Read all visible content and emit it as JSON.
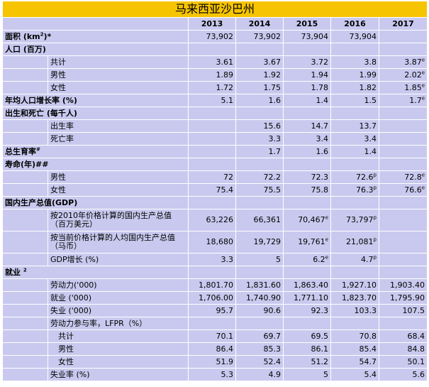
{
  "title": "马来西亚沙巴州",
  "years": [
    "2013",
    "2014",
    "2015",
    "2016",
    "2017"
  ],
  "rows": [
    {
      "type": "sec",
      "label": "面积 (km<sup>2</sup>)*",
      "values": [
        "73,902",
        "73,902",
        "73,904",
        "73,904",
        ""
      ]
    },
    {
      "type": "sec",
      "label": "人口 (百万)",
      "values": [
        "",
        "",
        "",
        "",
        ""
      ]
    },
    {
      "type": "sub",
      "label": "共计",
      "values": [
        "3.61",
        "3.67",
        "3.72",
        "3.8",
        "3.87<sup>e</sup>"
      ]
    },
    {
      "type": "sub",
      "label": "男性",
      "values": [
        "1.89",
        "1.92",
        "1.94",
        "1.99",
        "2.02<sup>e</sup>"
      ]
    },
    {
      "type": "sub",
      "label": "女性",
      "values": [
        "1.72",
        "1.75",
        "1.78",
        "1.82",
        "1.85<sup>e</sup>"
      ]
    },
    {
      "type": "sec",
      "label": "年均人口增长率 (%)",
      "values": [
        "5.1",
        "1.6",
        "1.4",
        "1.5",
        "1.7<sup>e</sup>"
      ]
    },
    {
      "type": "sec",
      "label": "出生和死亡 (每千人)",
      "values": [
        "",
        "",
        "",
        "",
        ""
      ]
    },
    {
      "type": "sub",
      "label": "出生率",
      "values": [
        "",
        "15.6",
        "14.7",
        "13.7",
        ""
      ]
    },
    {
      "type": "sub",
      "label": "死亡率",
      "values": [
        "",
        "3.3",
        "3.4",
        "3.4",
        ""
      ]
    },
    {
      "type": "sec",
      "label": "总生育率<sup>#</sup>",
      "values": [
        "",
        "1.7",
        "1.6",
        "1.4",
        ""
      ]
    },
    {
      "type": "sec",
      "label": "寿命(年)##",
      "values": [
        "",
        "",
        "",
        "",
        ""
      ]
    },
    {
      "type": "sub",
      "label": "男性",
      "values": [
        "72",
        "72.2",
        "72.3",
        "72.6<sup>p</sup>",
        "72.8<sup>e</sup>"
      ]
    },
    {
      "type": "sub",
      "label": "女性",
      "values": [
        "75.4",
        "75.5",
        "75.8",
        "76.3<sup>p</sup>",
        "76.6<sup>e</sup>"
      ]
    },
    {
      "type": "sec",
      "label": "国内生产总值(GDP)",
      "values": [
        "",
        "",
        "",
        "",
        ""
      ]
    },
    {
      "type": "sub",
      "tall": true,
      "label": "按2010年价格计算的国内生产总值<br>（百万美元）",
      "values": [
        "63,226",
        "66,361",
        "70,467<sup>e</sup>",
        "73,797<sup>p</sup>",
        ""
      ]
    },
    {
      "type": "sub",
      "tall": true,
      "label": "按当前价格计算的人均国内生产总值<br>（马币）",
      "values": [
        "18,680",
        "19,729",
        "19,761<sup>e</sup>",
        "21,081<sup>p</sup>",
        ""
      ]
    },
    {
      "type": "sub",
      "label": "GDP增长 (%)",
      "values": [
        "3.3",
        "5",
        "6.2<sup>e</sup>",
        "4.7<sup>p</sup>",
        ""
      ]
    },
    {
      "type": "sec",
      "label": "就业 <sup>2</sup>",
      "values": [
        "",
        "",
        "",
        "",
        ""
      ]
    },
    {
      "type": "sub",
      "label": "劳动力('000)",
      "values": [
        "1,801.70",
        "1,831.60",
        "1,863.40",
        "1,927.10",
        "1,903.40"
      ]
    },
    {
      "type": "sub",
      "label": "就业 ('000)",
      "values": [
        "1,706.00",
        "1,740.90",
        "1,771.10",
        "1,823.70",
        "1,795.90"
      ]
    },
    {
      "type": "sub",
      "label": "失业 ('000)",
      "values": [
        "95.7",
        "90.6",
        "92.3",
        "103.3",
        "107.5"
      ]
    },
    {
      "type": "sub",
      "label": "劳动力参与率，LFPR（%）",
      "values": [
        "",
        "",
        "",
        "",
        ""
      ]
    },
    {
      "type": "sub2",
      "label": "共计",
      "values": [
        "70.1",
        "69.7",
        "69.5",
        "70.8",
        "68.4"
      ]
    },
    {
      "type": "sub2",
      "label": "男性",
      "values": [
        "86.4",
        "85.3",
        "86.1",
        "85.4",
        "84.8"
      ]
    },
    {
      "type": "sub2",
      "label": "女性",
      "values": [
        "51.9",
        "52.4",
        "51.2",
        "54.7",
        "50.1"
      ]
    },
    {
      "type": "sub",
      "label": "失业率 (%)",
      "values": [
        "5.3",
        "4.9",
        "5",
        "5.4",
        "5.6"
      ]
    }
  ]
}
